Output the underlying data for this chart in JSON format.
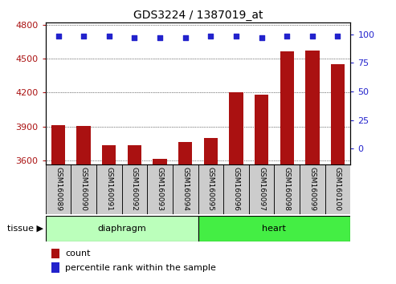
{
  "title": "GDS3224 / 1387019_at",
  "samples": [
    "GSM160089",
    "GSM160090",
    "GSM160091",
    "GSM160092",
    "GSM160093",
    "GSM160094",
    "GSM160095",
    "GSM160096",
    "GSM160097",
    "GSM160098",
    "GSM160099",
    "GSM160100"
  ],
  "counts": [
    3910,
    3905,
    3730,
    3730,
    3615,
    3760,
    3800,
    4205,
    4185,
    4565,
    4575,
    4455
  ],
  "percentile_ranks": [
    98,
    98,
    98,
    97,
    97,
    97,
    98,
    98,
    97,
    98,
    98,
    98
  ],
  "bar_color": "#aa1111",
  "dot_color": "#2222cc",
  "ylim_left": [
    3560,
    4820
  ],
  "ylim_right": [
    -14,
    110
  ],
  "yticks_left": [
    3600,
    3900,
    4200,
    4500,
    4800
  ],
  "yticks_right": [
    0,
    25,
    50,
    75,
    100
  ],
  "groups": [
    {
      "label": "diaphragm",
      "start": 0,
      "end": 6,
      "color": "#bbffbb"
    },
    {
      "label": "heart",
      "start": 6,
      "end": 12,
      "color": "#44ee44"
    }
  ],
  "tissue_label": "tissue",
  "legend_count_label": "count",
  "legend_percentile_label": "percentile rank within the sample",
  "bar_width": 0.55,
  "cell_bg_color": "#cccccc",
  "plot_bg_color": "#ffffff"
}
